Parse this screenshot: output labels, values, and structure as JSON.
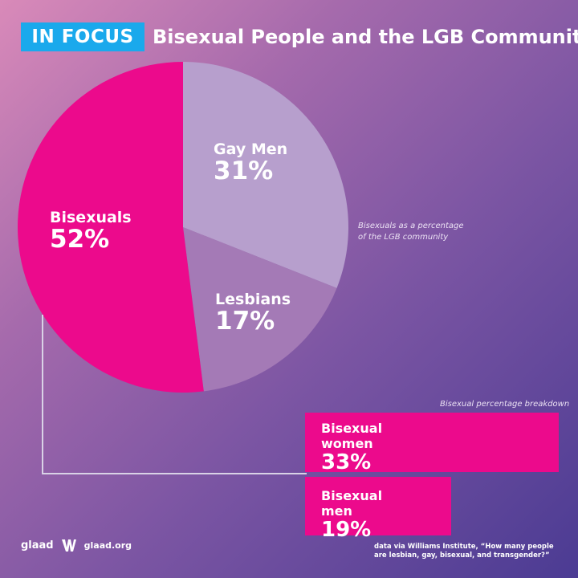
{
  "header": {
    "badge": "IN FOCUS",
    "title": "Bisexual People and the LGB Community"
  },
  "chart_data": [
    {
      "type": "pie",
      "title": "",
      "note": [
        "Bisexuals as a percentage",
        "of the LGB community"
      ],
      "slices": [
        {
          "label": "Bisexuals",
          "display": "52%",
          "value": 52,
          "color": "#ec0a8c"
        },
        {
          "label": "Gay Men",
          "display": "31%",
          "value": 31,
          "color": "#b79fcd"
        },
        {
          "label": "Lesbians",
          "display": "17%",
          "value": 17,
          "color": "#a47ab6"
        }
      ]
    },
    {
      "type": "bar",
      "orientation": "horizontal",
      "title": "Bisexual percentage breakdown",
      "categories": [
        "Bisexual women",
        "Bisexual men"
      ],
      "values": [
        33,
        19
      ],
      "display": [
        "33%",
        "19%"
      ],
      "xlim": [
        0,
        33
      ],
      "color": "#ec0a8c"
    }
  ],
  "footer": {
    "logo_text": "glaad",
    "site": "glaad.org",
    "source_line1": "data via Williams Institute, “How many people",
    "source_line2": "are lesbian, gay, bisexual, and transgender?”"
  }
}
